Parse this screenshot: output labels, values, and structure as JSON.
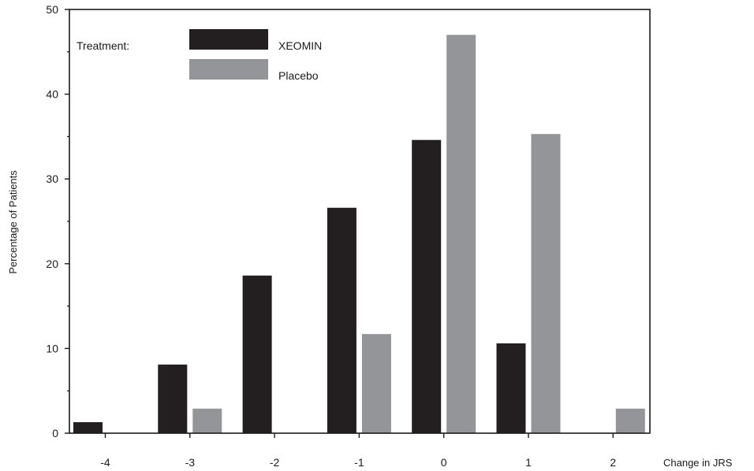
{
  "chart_data": {
    "type": "bar",
    "categories": [
      "-4",
      "-3",
      "-2",
      "-1",
      "0",
      "1",
      "2"
    ],
    "series": [
      {
        "name": "XEOMIN",
        "color": "#231f20",
        "values": [
          1.3,
          8.1,
          18.6,
          26.6,
          34.6,
          10.6,
          0
        ]
      },
      {
        "name": "Placebo",
        "color": "#939598",
        "values": [
          0,
          2.9,
          0,
          11.7,
          47.0,
          35.3,
          2.9
        ]
      }
    ],
    "xlabel": "Change in JRS",
    "ylabel": "Percentage of Patients",
    "ylim": [
      0,
      50
    ],
    "yticks": [
      0,
      10,
      20,
      30,
      40,
      50
    ],
    "grid": false,
    "legend": {
      "title": "Treatment:",
      "placement": "top-left"
    }
  }
}
